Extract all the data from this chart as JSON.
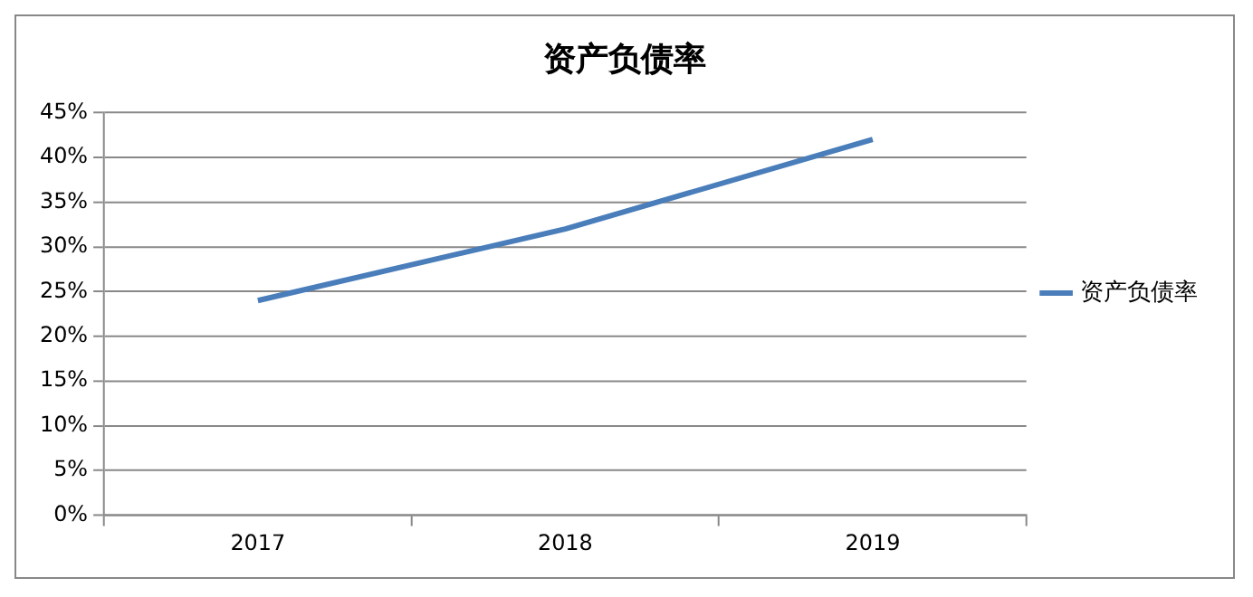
{
  "chart_data": {
    "type": "line",
    "title": "资产负债率",
    "categories": [
      "2017",
      "2018",
      "2019"
    ],
    "series": [
      {
        "name": "资产负债率",
        "color": "#4a7ebb",
        "values": [
          24,
          32,
          42
        ]
      }
    ],
    "ylim": [
      0,
      45
    ],
    "yticks": [
      {
        "value": 0,
        "label": "0%"
      },
      {
        "value": 5,
        "label": "5%"
      },
      {
        "value": 10,
        "label": "10%"
      },
      {
        "value": 15,
        "label": "15%"
      },
      {
        "value": 20,
        "label": "20%"
      },
      {
        "value": 25,
        "label": "25%"
      },
      {
        "value": 30,
        "label": "30%"
      },
      {
        "value": 35,
        "label": "35%"
      },
      {
        "value": 40,
        "label": "40%"
      },
      {
        "value": 45,
        "label": "45%"
      }
    ],
    "grid": "y",
    "legend": "right",
    "marker": "none",
    "line_style": "solid"
  }
}
